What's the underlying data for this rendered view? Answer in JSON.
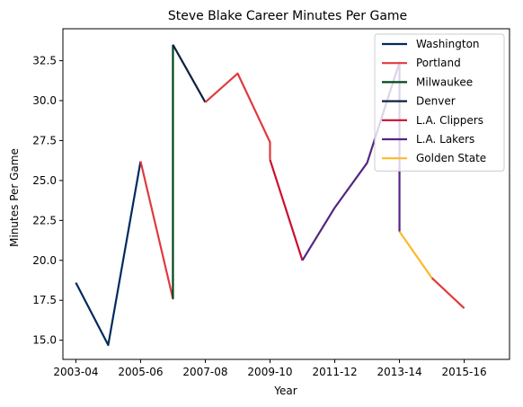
{
  "chart_data": {
    "type": "line",
    "title": "Steve Blake Career Minutes Per Game",
    "xlabel": "Year",
    "ylabel": "Minutes Per Game",
    "x_ticks": [
      "2003-04",
      "2005-06",
      "2007-08",
      "2009-10",
      "2011-12",
      "2013-14",
      "2015-16"
    ],
    "y_ticks": [
      "15.0",
      "17.5",
      "20.0",
      "22.5",
      "25.0",
      "27.5",
      "30.0",
      "32.5"
    ],
    "xlim": [
      2002.6,
      2016.4
    ],
    "ylim": [
      13.8,
      34.5
    ],
    "grid": false,
    "legend_position": "top-right",
    "series": [
      {
        "name": "Washington",
        "color": "#002b5c",
        "x": [
          2003,
          2004,
          2005
        ],
        "y": [
          18.6,
          14.7,
          26.2
        ]
      },
      {
        "name": "Portland",
        "color": "#e03a3e",
        "x": [
          2005,
          2006,
          2006
        ],
        "y": [
          26.2,
          17.6,
          17.7
        ]
      },
      {
        "name": "Milwaukee",
        "color": "#00471b",
        "x": [
          2006,
          2006
        ],
        "y": [
          17.6,
          33.5
        ]
      },
      {
        "name": "Denver",
        "color": "#0e2240",
        "x": [
          2006,
          2007
        ],
        "y": [
          33.5,
          29.9
        ]
      },
      {
        "name": "Portland",
        "color": "#e03a3e",
        "x": [
          2007,
          2008,
          2009,
          2009
        ],
        "y": [
          29.9,
          31.7,
          27.4,
          26.3
        ]
      },
      {
        "name": "L.A. Clippers",
        "color": "#c8102e",
        "x": [
          2009,
          2010
        ],
        "y": [
          26.3,
          20.0
        ]
      },
      {
        "name": "L.A. Lakers",
        "color": "#552583",
        "x": [
          2010,
          2011,
          2012,
          2013,
          2013
        ],
        "y": [
          20.0,
          23.3,
          26.1,
          32.4,
          21.8
        ]
      },
      {
        "name": "Golden State",
        "color": "#fdb927",
        "x": [
          2013,
          2014
        ],
        "y": [
          21.8,
          18.9
        ]
      },
      {
        "name": "Portland",
        "color": "#e03a3e",
        "x": [
          2014,
          2015
        ],
        "y": [
          18.9,
          17.0
        ]
      }
    ],
    "legend": [
      {
        "label": "Washington",
        "color": "#002b5c"
      },
      {
        "label": "Portland",
        "color": "#e03a3e"
      },
      {
        "label": "Milwaukee",
        "color": "#00471b"
      },
      {
        "label": "Denver",
        "color": "#0e2240"
      },
      {
        "label": "L.A. Clippers",
        "color": "#c8102e"
      },
      {
        "label": "L.A. Lakers",
        "color": "#552583"
      },
      {
        "label": "Golden State",
        "color": "#fdb927"
      }
    ]
  }
}
